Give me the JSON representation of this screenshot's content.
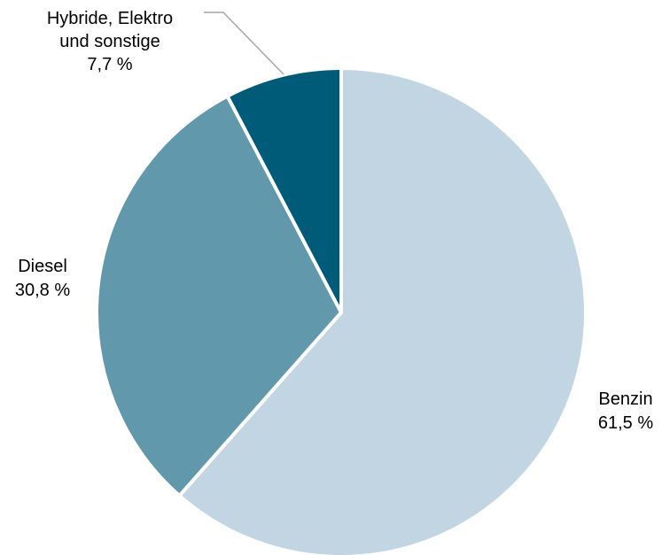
{
  "chart_data": {
    "type": "pie",
    "start": "12 o'clock",
    "direction": "clockwise",
    "slices": [
      {
        "label_lines": [
          "Benzin"
        ],
        "value": 61.5,
        "value_label": "61,5 %",
        "color": "#c2d5e2"
      },
      {
        "label_lines": [
          "Diesel"
        ],
        "value": 30.8,
        "value_label": "30,8 %",
        "color": "#6198ab"
      },
      {
        "label_lines": [
          "Hybride, Elektro",
          "und sonstige"
        ],
        "value": 7.7,
        "value_label": "7,7 %",
        "color": "#005b79"
      }
    ],
    "slice_border_color": "#ffffff",
    "leader_line_color": "#a6a6a6"
  }
}
